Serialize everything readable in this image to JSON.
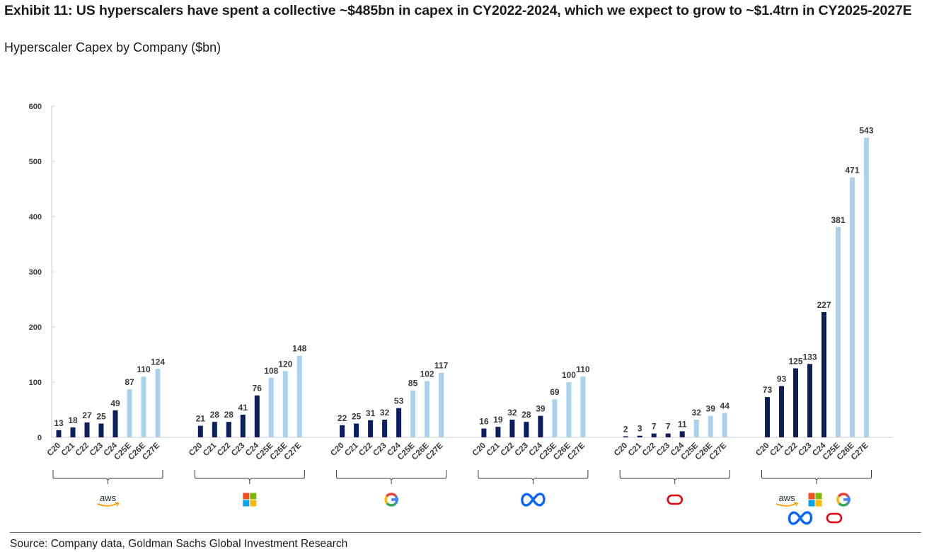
{
  "header": {
    "title": "Exhibit 11: US hyperscalers have spent a collective ~$485bn in capex in CY2022-2024, which we expect to grow to ~$1.4trn in CY2025-2027E",
    "subtitle": "Hyperscaler Capex by Company ($bn)"
  },
  "footer": {
    "source": "Source: Company data, Goldman Sachs Global Investment Research"
  },
  "colors": {
    "actual": "#0b1f5c",
    "estimate": "#a9d2ef",
    "axis": "#cfcfcf",
    "bracket": "#3a3a3a"
  },
  "chart_data": {
    "type": "bar",
    "title": "Hyperscaler Capex by Company ($bn)",
    "xlabel": "",
    "ylabel": "",
    "ylim": [
      0,
      600
    ],
    "yticks": [
      0,
      100,
      200,
      300,
      400,
      500,
      600
    ],
    "grid": false,
    "legend": "none",
    "categories": [
      "C20",
      "C21",
      "C22",
      "C23",
      "C24",
      "C25E",
      "C26E",
      "C27E"
    ],
    "estimate_categories": [
      "C25E",
      "C26E",
      "C27E"
    ],
    "groups": [
      {
        "name": "Amazon (AWS)",
        "logos": [
          "aws"
        ],
        "values": [
          13,
          18,
          27,
          25,
          49,
          87,
          110,
          124
        ]
      },
      {
        "name": "Microsoft",
        "logos": [
          "microsoft"
        ],
        "values": [
          21,
          28,
          28,
          41,
          76,
          108,
          120,
          148
        ]
      },
      {
        "name": "Google",
        "logos": [
          "google"
        ],
        "values": [
          22,
          25,
          31,
          32,
          53,
          85,
          102,
          117
        ]
      },
      {
        "name": "Meta",
        "logos": [
          "meta"
        ],
        "values": [
          16,
          19,
          32,
          28,
          39,
          69,
          100,
          110
        ]
      },
      {
        "name": "Oracle",
        "logos": [
          "oracle"
        ],
        "values": [
          2,
          3,
          7,
          7,
          11,
          32,
          39,
          44
        ]
      },
      {
        "name": "Total",
        "logos": [
          "aws",
          "microsoft",
          "google",
          "meta",
          "oracle"
        ],
        "values": [
          73,
          93,
          125,
          133,
          227,
          381,
          471,
          543
        ]
      }
    ]
  }
}
